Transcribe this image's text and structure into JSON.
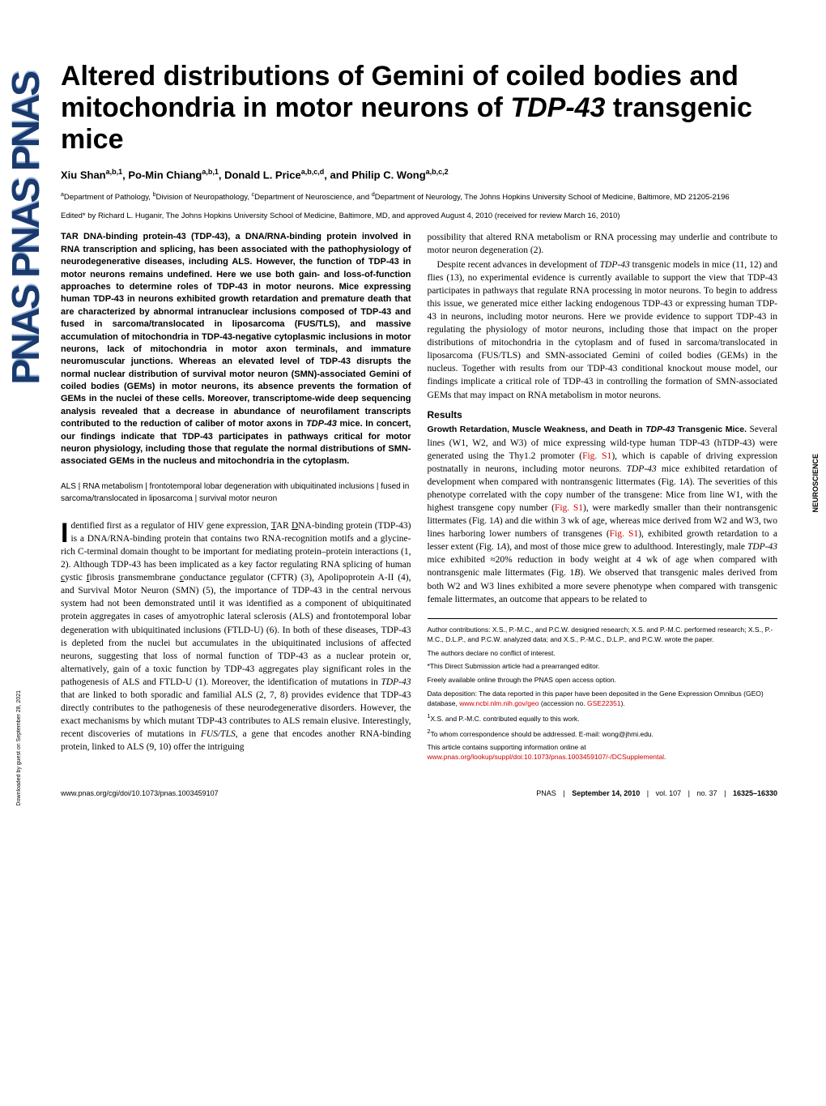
{
  "title_part1": "Altered distributions of Gemini of coiled bodies and mitochondria in motor neurons of ",
  "title_italic": "TDP-43",
  "title_part2": " transgenic mice",
  "authors_html": "Xiu Shan<sup>a,b,1</sup>, Po-Min Chiang<sup>a,b,1</sup>, Donald L. Price<sup>a,b,c,d</sup>, and Philip C. Wong<sup>a,b,c,2</sup>",
  "affiliations_html": "<sup>a</sup>Department of Pathology, <sup>b</sup>Division of Neuropathology, <sup>c</sup>Department of Neuroscience, and <sup>d</sup>Department of Neurology, The Johns Hopkins University School of Medicine, Baltimore, MD 21205-2196",
  "edited": "Edited* by Richard L. Huganir, The Johns Hopkins University School of Medicine, Baltimore, MD, and approved August 4, 2010 (received for review March 16, 2010)",
  "abstract": "TAR DNA-binding protein-43 (TDP-43), a DNA/RNA-binding protein involved in RNA transcription and splicing, has been associated with the pathophysiology of neurodegenerative diseases, including ALS. However, the function of TDP-43 in motor neurons remains undefined. Here we use both gain- and loss-of-function approaches to determine roles of TDP-43 in motor neurons. Mice expressing human TDP-43 in neurons exhibited growth retardation and premature death that are characterized by abnormal intranuclear inclusions composed of TDP-43 and fused in sarcoma/translocated in liposarcoma (FUS/TLS), and massive accumulation of mitochondria in TDP-43-negative cytoplasmic inclusions in motor neurons, lack of mitochondria in motor axon terminals, and immature neuromuscular junctions. Whereas an elevated level of TDP-43 disrupts the normal nuclear distribution of survival motor neuron (SMN)-associated Gemini of coiled bodies (GEMs) in motor neurons, its absence prevents the formation of GEMs in the nuclei of these cells. Moreover, transcriptome-wide deep sequencing analysis revealed that a decrease in abundance of neurofilament transcripts contributed to the reduction of caliber of motor axons in <span class=\"italic\">TDP-43</span> mice. In concert, our findings indicate that TDP-43 participates in pathways critical for motor neuron physiology, including those that regulate the normal distributions of SMN-associated GEMs in the nucleus and mitochondria in the cytoplasm.",
  "keywords": "ALS | RNA metabolism | frontotemporal lobar degeneration with ubiquitinated inclusions | fused in sarcoma/translocated in liposarcoma | survival motor neuron",
  "intro_first_letter": "I",
  "intro_p1": "dentified first as a regulator of HIV gene expression, <span class=\"underline\">T</span>AR <span class=\"underline\">D</span>NA-binding <span class=\"underline\">p</span>rotein (TDP-43) is a DNA/RNA-binding protein that contains two RNA-recognition motifs and a glycine-rich C-terminal domain thought to be important for mediating protein–protein interactions (1, 2). Although TDP-43 has been implicated as a key factor regulating RNA splicing of human <span class=\"underline\">c</span>ystic <span class=\"underline\">f</span>ibrosis <span class=\"underline\">t</span>ransmembrane <span class=\"underline\">c</span>onductance <span class=\"underline\">r</span>egulator (CFTR) (3), Apolipoprotein A-II (4), and Survival Motor Neuron (SMN) (5), the importance of TDP-43 in the central nervous system had not been demonstrated until it was identified as a component of ubiquitinated protein aggregates in cases of amyotrophic lateral sclerosis (ALS) and frontotemporal lobar degeneration with ubiquitinated inclusions (FTLD-U) (6). In both of these diseases, TDP-43 is depleted from the nuclei but accumulates in the ubiquitinated inclusions of affected neurons, suggesting that loss of normal function of TDP-43 as a nuclear protein or, alternatively, gain of a toxic function by TDP-43 aggregates play significant roles in the pathogenesis of ALS and FTLD-U (1). Moreover, the identification of mutations in <span class=\"italic\">TDP-43</span> that are linked to both sporadic and familial ALS (2, 7, 8) provides evidence that TDP-43 directly contributes to the pathogenesis of these neurodegenerative disorders. However, the exact mechanisms by which mutant TDP-43 contributes to ALS remain elusive. Interestingly, recent discoveries of mutations in <span class=\"italic\">FUS/TLS</span>, a gene that encodes another RNA-binding protein, linked to ALS (9, 10) offer the intriguing",
  "col2_p1": "possibility that altered RNA metabolism or RNA processing may underlie and contribute to motor neuron degeneration (2).",
  "col2_p2": "Despite recent advances in development of <span class=\"italic\">TDP-43</span> transgenic models in mice (11, 12) and flies (13), no experimental evidence is currently available to support the view that TDP-43 participates in pathways that regulate RNA processing in motor neurons. To begin to address this issue, we generated mice either lacking endogenous TDP-43 or expressing human TDP-43 in neurons, including motor neurons. Here we provide evidence to support TDP-43 in regulating the physiology of motor neurons, including those that impact on the proper distributions of mitochondria in the cytoplasm and of fused in sarcoma/translocated in liposarcoma (FUS/TLS) and SMN-associated Gemini of coiled bodies (GEMs) in the nucleus. Together with results from our TDP-43 conditional knockout mouse model, our findings implicate a critical role of TDP-43 in controlling the formation of SMN-associated GEMs that may impact on RNA metabolism in motor neurons.",
  "results_heading": "Results",
  "results_sub": "Growth Retardation, Muscle Weakness, and Death in <span class=\"italic\">TDP-43</span> Transgenic Mice.",
  "results_p1": " Several lines (W1, W2, and W3) of mice expressing wild-type human TDP-43 (hTDP-43) were generated using the Thy1.2 promoter (<span class=\"link\">Fig. S1</span>), which is capable of driving expression postnatally in neurons, including motor neurons. <span class=\"italic\">TDP-43</span> mice exhibited retardation of development when compared with nontransgenic littermates (Fig. 1<span class=\"italic\">A</span>). The severities of this phenotype correlated with the copy number of the transgene: Mice from line W1, with the highest transgene copy number (<span class=\"link\">Fig. S1</span>), were markedly smaller than their nontransgenic littermates (Fig. 1<span class=\"italic\">A</span>) and die within 3 wk of age, whereas mice derived from W2 and W3, two lines harboring lower numbers of transgenes (<span class=\"link\">Fig. S1</span>), exhibited growth retardation to a lesser extent (Fig. 1<span class=\"italic\">A</span>), and most of those mice grew to adulthood. Interestingly, male <span class=\"italic\">TDP-43</span> mice exhibited ≈20% reduction in body weight at 4 wk of age when compared with nontransgenic male littermates (Fig. 1<span class=\"italic\">B</span>). We observed that transgenic males derived from both W2 and W3 lines exhibited a more severe phenotype when compared with transgenic female littermates, an outcome that appears to be related to",
  "footer": {
    "author_contrib": "Author contributions: X.S., P.-M.C., and P.C.W. designed research; X.S. and P.-M.C. performed research; X.S., P.-M.C., D.L.P., and P.C.W. analyzed data; and X.S., P.-M.C., D.L.P., and P.C.W. wrote the paper.",
    "conflict": "The authors declare no conflict of interest.",
    "editor": "*This Direct Submission article had a prearranged editor.",
    "open_access": "Freely available online through the PNAS open access option.",
    "data_dep": "Data deposition: The data reported in this paper have been deposited in the Gene Expression Omnibus (GEO) database, <span class=\"link\">www.ncbi.nlm.nih.gov/geo</span> (accession no. <span class=\"link\">GSE22351</span>).",
    "equal": "<sup>1</sup>X.S. and P.-M.C. contributed equally to this work.",
    "corr": "<sup>2</sup>To whom correspondence should be addressed. E-mail: wong@jhmi.edu.",
    "suppl": "This article contains supporting information online at <span class=\"link\">www.pnas.org/lookup/suppl/doi:10.1073/pnas.1003459107/-/DCSupplemental</span>."
  },
  "page_footer": {
    "doi": "www.pnas.org/cgi/doi/10.1073/pnas.1003459107",
    "journal": "PNAS",
    "date": "September 14, 2010",
    "vol": "vol. 107",
    "issue": "no. 37",
    "pages": "16325–16330"
  },
  "side_category": "NEUROSCIENCE",
  "download_note": "Downloaded by guest on September 28, 2021",
  "pnas_logo": "PNAS PNAS PNAS"
}
